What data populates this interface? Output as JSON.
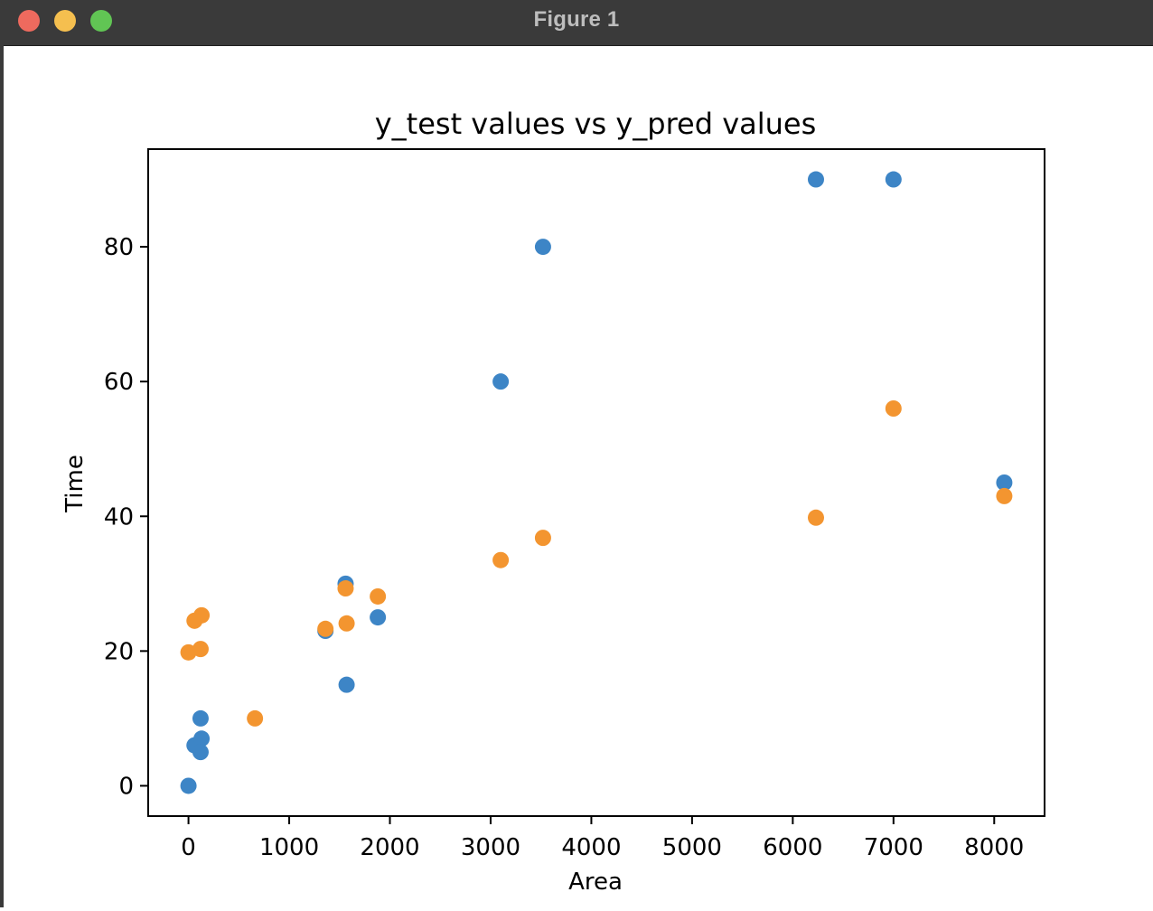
{
  "window": {
    "title": "Figure 1"
  },
  "chart_data": {
    "type": "scatter",
    "title": "y_test values vs y_pred values",
    "xlabel": "Area",
    "ylabel": "Time",
    "xlim": [
      -400,
      8500
    ],
    "ylim": [
      -4.5,
      94.5
    ],
    "xticks": [
      0,
      1000,
      2000,
      3000,
      4000,
      5000,
      6000,
      7000,
      8000
    ],
    "yticks": [
      0,
      20,
      40,
      60,
      80
    ],
    "grid": false,
    "legend": "none",
    "series": [
      {
        "color": "#3d85c6",
        "points": [
          [
            0,
            0
          ],
          [
            60,
            6
          ],
          [
            120,
            10
          ],
          [
            130,
            7
          ],
          [
            120,
            5
          ],
          [
            1360,
            23
          ],
          [
            1560,
            30
          ],
          [
            1570,
            15
          ],
          [
            1880,
            25
          ],
          [
            3100,
            60
          ],
          [
            3520,
            80
          ],
          [
            6230,
            90
          ],
          [
            7000,
            90
          ],
          [
            8100,
            45
          ]
        ]
      },
      {
        "color": "#f39530",
        "points": [
          [
            0,
            19.8
          ],
          [
            60,
            24.5
          ],
          [
            130,
            25.3
          ],
          [
            120,
            20.3
          ],
          [
            660,
            10
          ],
          [
            1360,
            23.3
          ],
          [
            1560,
            29.3
          ],
          [
            1570,
            24.1
          ],
          [
            1880,
            28.1
          ],
          [
            3100,
            33.5
          ],
          [
            3520,
            36.8
          ],
          [
            6230,
            39.8
          ],
          [
            7000,
            56
          ],
          [
            8100,
            43
          ]
        ]
      }
    ]
  }
}
